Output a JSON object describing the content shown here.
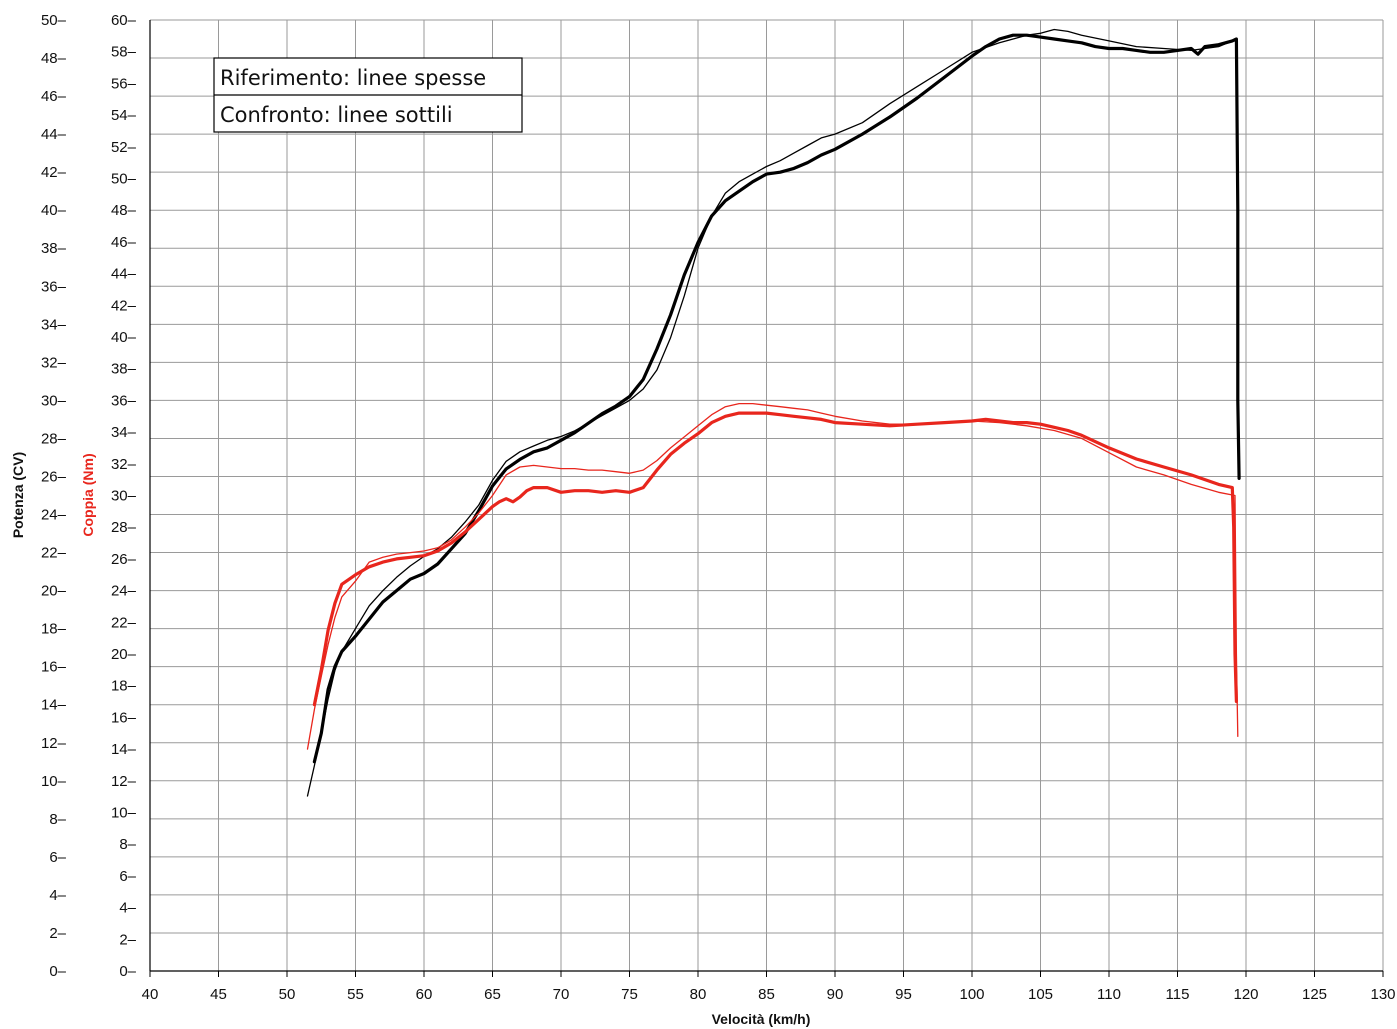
{
  "chart_data": {
    "type": "line",
    "xlabel": "Velocità (km/h)",
    "ylabel_left": "Potenza (CV)",
    "ylabel_right": "Coppia (Nm)",
    "xlim": [
      40,
      130
    ],
    "ylim_potenza": [
      0,
      50
    ],
    "ylim_coppia": [
      0,
      60
    ],
    "x_ticks": [
      40,
      45,
      50,
      55,
      60,
      65,
      70,
      75,
      80,
      85,
      90,
      95,
      100,
      105,
      110,
      115,
      120,
      125,
      130
    ],
    "potenza_ticks": [
      0,
      2,
      4,
      6,
      8,
      10,
      12,
      14,
      16,
      18,
      20,
      22,
      24,
      26,
      28,
      30,
      32,
      34,
      36,
      38,
      40,
      42,
      44,
      46,
      48,
      50
    ],
    "coppia_ticks": [
      0,
      2,
      4,
      6,
      8,
      10,
      12,
      14,
      16,
      18,
      20,
      22,
      24,
      26,
      28,
      30,
      32,
      34,
      36,
      38,
      40,
      42,
      44,
      46,
      48,
      50,
      52,
      54,
      56,
      58,
      60
    ],
    "grid": true,
    "legend": {
      "position": "top-left",
      "lines": [
        "Riferimento: linee spesse",
        "Confronto: linee sottili"
      ]
    },
    "series": [
      {
        "axis": "potenza",
        "color": "#000000",
        "style": "thick",
        "x": [
          52.0,
          52.5,
          53.0,
          53.5,
          54.0,
          55.0,
          56.0,
          57.0,
          58.0,
          59.0,
          60.0,
          61.0,
          62.0,
          63.0,
          64.0,
          65.0,
          66.0,
          67.0,
          68.0,
          69.0,
          70.0,
          71.0,
          72.0,
          73.0,
          74.0,
          75.0,
          76.0,
          77.0,
          78.0,
          79.0,
          80.0,
          81.0,
          82.0,
          83.0,
          84.0,
          85.0,
          86.0,
          87.0,
          88.0,
          89.0,
          90.0,
          92.0,
          94.0,
          96.0,
          98.0,
          100.0,
          101.0,
          102.0,
          103.0,
          104.0,
          105.0,
          106.0,
          107.0,
          108.0,
          109.0,
          110.0,
          111.0,
          112.0,
          113.0,
          114.0,
          115.0,
          116.0,
          116.5,
          117.0,
          118.0,
          119.0,
          119.3,
          119.4,
          119.4,
          119.5
        ],
        "y": [
          11.0,
          12.5,
          14.8,
          16.0,
          16.8,
          17.6,
          18.5,
          19.4,
          20.0,
          20.6,
          20.9,
          21.4,
          22.2,
          23.0,
          24.2,
          25.5,
          26.4,
          26.9,
          27.3,
          27.5,
          27.9,
          28.3,
          28.8,
          29.3,
          29.7,
          30.2,
          31.1,
          32.7,
          34.5,
          36.6,
          38.3,
          39.7,
          40.5,
          41.0,
          41.5,
          41.9,
          42.0,
          42.2,
          42.5,
          42.9,
          43.2,
          44.0,
          44.9,
          45.9,
          47.0,
          48.1,
          48.6,
          49.0,
          49.2,
          49.2,
          49.1,
          49.0,
          48.9,
          48.8,
          48.6,
          48.5,
          48.5,
          48.4,
          48.3,
          48.3,
          48.4,
          48.5,
          48.2,
          48.6,
          48.7,
          48.9,
          49.0,
          40.0,
          30.0,
          25.9
        ]
      },
      {
        "axis": "potenza",
        "color": "#000000",
        "style": "thin",
        "x": [
          51.5,
          52.0,
          52.5,
          53.0,
          53.5,
          54.0,
          55.0,
          56.0,
          57.0,
          58.0,
          59.0,
          60.0,
          61.0,
          62.0,
          63.0,
          64.0,
          65.0,
          66.0,
          67.0,
          68.0,
          69.0,
          70.0,
          71.0,
          72.0,
          73.0,
          74.0,
          75.0,
          76.0,
          77.0,
          78.0,
          79.0,
          80.0,
          81.0,
          82.0,
          83.0,
          84.0,
          85.0,
          86.0,
          87.0,
          88.0,
          89.0,
          90.0,
          92.0,
          94.0,
          96.0,
          98.0,
          100.0,
          102.0,
          104.0,
          105.0,
          106.0,
          107.0,
          108.0,
          110.0,
          112.0,
          114.0,
          116.0,
          118.0,
          119.0
        ],
        "y": [
          9.2,
          10.8,
          12.5,
          14.3,
          15.8,
          16.8,
          18.0,
          19.2,
          20.0,
          20.7,
          21.3,
          21.8,
          22.2,
          22.8,
          23.6,
          24.5,
          25.8,
          26.8,
          27.3,
          27.6,
          27.9,
          28.1,
          28.4,
          28.8,
          29.2,
          29.6,
          30.0,
          30.6,
          31.6,
          33.3,
          35.5,
          38.0,
          39.7,
          40.9,
          41.5,
          41.9,
          42.3,
          42.6,
          43.0,
          43.4,
          43.8,
          44.0,
          44.6,
          45.6,
          46.5,
          47.4,
          48.3,
          48.8,
          49.2,
          49.3,
          49.5,
          49.4,
          49.2,
          48.9,
          48.6,
          48.5,
          48.4,
          48.6,
          48.9
        ]
      },
      {
        "axis": "coppia",
        "color": "#e8261d",
        "style": "thick",
        "x": [
          52.0,
          52.5,
          53.0,
          53.5,
          54.0,
          55.0,
          56.0,
          57.0,
          58.0,
          59.0,
          60.0,
          61.0,
          62.0,
          63.0,
          64.0,
          65.0,
          65.5,
          66.0,
          66.5,
          67.0,
          67.5,
          68.0,
          69.0,
          70.0,
          71.0,
          72.0,
          73.0,
          74.0,
          75.0,
          76.0,
          77.0,
          78.0,
          79.0,
          80.0,
          81.0,
          82.0,
          83.0,
          84.0,
          85.0,
          86.0,
          87.0,
          88.0,
          89.0,
          90.0,
          92.0,
          94.0,
          96.0,
          98.0,
          100.0,
          101.0,
          102.0,
          103.0,
          104.0,
          105.0,
          106.0,
          107.0,
          108.0,
          110.0,
          112.0,
          114.0,
          116.0,
          117.0,
          118.0,
          119.0,
          119.1,
          119.2,
          119.3
        ],
        "y": [
          16.8,
          19.0,
          21.5,
          23.2,
          24.4,
          25.0,
          25.5,
          25.8,
          26.0,
          26.1,
          26.2,
          26.5,
          27.0,
          27.7,
          28.5,
          29.3,
          29.6,
          29.8,
          29.6,
          29.9,
          30.3,
          30.5,
          30.5,
          30.2,
          30.3,
          30.3,
          30.2,
          30.3,
          30.2,
          30.5,
          31.6,
          32.6,
          33.3,
          33.9,
          34.6,
          35.0,
          35.2,
          35.2,
          35.2,
          35.1,
          35.0,
          34.9,
          34.8,
          34.6,
          34.5,
          34.4,
          34.5,
          34.6,
          34.7,
          34.8,
          34.7,
          34.6,
          34.6,
          34.5,
          34.3,
          34.1,
          33.8,
          33.0,
          32.3,
          31.8,
          31.3,
          31.0,
          30.7,
          30.5,
          28.0,
          20.0,
          17.0
        ]
      },
      {
        "axis": "coppia",
        "color": "#e8261d",
        "style": "thin",
        "x": [
          51.5,
          52.0,
          52.5,
          53.0,
          53.5,
          54.0,
          55.0,
          56.0,
          57.0,
          58.0,
          59.0,
          60.0,
          61.0,
          62.0,
          63.0,
          64.0,
          65.0,
          66.0,
          67.0,
          68.0,
          69.0,
          70.0,
          71.0,
          72.0,
          73.0,
          74.0,
          75.0,
          76.0,
          77.0,
          78.0,
          79.0,
          80.0,
          81.0,
          82.0,
          83.0,
          84.0,
          85.0,
          86.0,
          87.0,
          88.0,
          89.0,
          90.0,
          92.0,
          94.0,
          96.0,
          98.0,
          100.0,
          102.0,
          104.0,
          106.0,
          108.0,
          110.0,
          112.0,
          114.0,
          116.0,
          118.0,
          119.2,
          119.3,
          119.4
        ],
        "y": [
          14.0,
          16.5,
          18.6,
          20.6,
          22.3,
          23.6,
          24.6,
          25.8,
          26.1,
          26.3,
          26.4,
          26.5,
          26.7,
          27.2,
          28.0,
          28.9,
          30.0,
          31.3,
          31.8,
          31.9,
          31.8,
          31.7,
          31.7,
          31.6,
          31.6,
          31.5,
          31.4,
          31.6,
          32.2,
          33.0,
          33.7,
          34.4,
          35.1,
          35.6,
          35.8,
          35.8,
          35.7,
          35.6,
          35.5,
          35.4,
          35.2,
          35.0,
          34.7,
          34.5,
          34.5,
          34.6,
          34.7,
          34.6,
          34.4,
          34.1,
          33.6,
          32.7,
          31.8,
          31.3,
          30.7,
          30.2,
          30.0,
          20.0,
          14.8
        ]
      }
    ]
  }
}
